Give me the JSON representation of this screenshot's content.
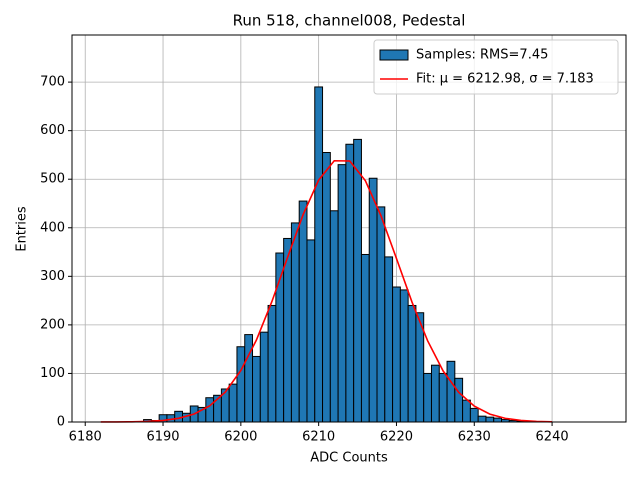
{
  "chart_data": {
    "type": "histogram",
    "title": "Run 518, channel008, Pedestal",
    "xlabel": "ADC Counts",
    "ylabel": "Entries",
    "bins": [
      6187.5,
      6188.5,
      6189.5,
      6190.5,
      6191.5,
      6192.5,
      6193.5,
      6194.5,
      6195.5,
      6196.5,
      6197.5,
      6198.5,
      6199.5,
      6200.5,
      6201.5,
      6202.5,
      6203.5,
      6204.5,
      6205.5,
      6206.5,
      6207.5,
      6208.5,
      6209.5,
      6210.5,
      6211.5,
      6212.5,
      6213.5,
      6214.5,
      6215.5,
      6216.5,
      6217.5,
      6218.5,
      6219.5,
      6220.5,
      6221.5,
      6222.5,
      6223.5,
      6224.5,
      6225.5,
      6226.5,
      6227.5,
      6228.5,
      6229.5,
      6230.5,
      6231.5,
      6232.5,
      6233.5,
      6234.5,
      6235.5,
      6236.5
    ],
    "series": [
      {
        "name": "Samples: RMS=7.45",
        "type": "histogram",
        "color": "#1f77b4",
        "values": [
          5,
          3,
          15,
          15,
          22,
          18,
          33,
          30,
          50,
          55,
          68,
          78,
          155,
          180,
          135,
          185,
          240,
          348,
          378,
          410,
          455,
          375,
          690,
          555,
          435,
          530,
          572,
          582,
          345,
          502,
          443,
          340,
          278,
          272,
          240,
          225,
          100,
          117,
          100,
          125,
          90,
          45,
          28,
          12,
          10,
          8,
          5,
          3,
          2
        ]
      },
      {
        "name": "Fit: μ = 6212.98, σ = 7.183",
        "type": "line",
        "color": "#ff0000",
        "x": [
          6182,
          6184,
          6186,
          6188,
          6190,
          6192,
          6194,
          6196,
          6198,
          6200,
          6202,
          6204,
          6206,
          6208,
          6210,
          6212,
          6214,
          6216,
          6218,
          6220,
          6222,
          6224,
          6226,
          6228,
          6230,
          6232,
          6234,
          6236,
          6238,
          6240
        ],
        "values": [
          0.05,
          0.16,
          0.47,
          1.28,
          3.25,
          7.62,
          16.5,
          33.2,
          61.7,
          106.1,
          168.8,
          248.5,
          338.7,
          427.0,
          498.2,
          538.0,
          537.5,
          497.1,
          425.3,
          336.8,
          246.8,
          167.4,
          105.0,
          61.0,
          32.8,
          16.3,
          7.5,
          3.2,
          1.26,
          0.46
        ]
      }
    ],
    "xlim": [
      6178.3,
      6249.5
    ],
    "ylim": [
      0,
      797
    ],
    "xticks": [
      6180,
      6190,
      6200,
      6210,
      6220,
      6230,
      6240
    ],
    "yticks": [
      0,
      100,
      200,
      300,
      400,
      500,
      600,
      700
    ],
    "grid": true,
    "legend": "upper right"
  }
}
